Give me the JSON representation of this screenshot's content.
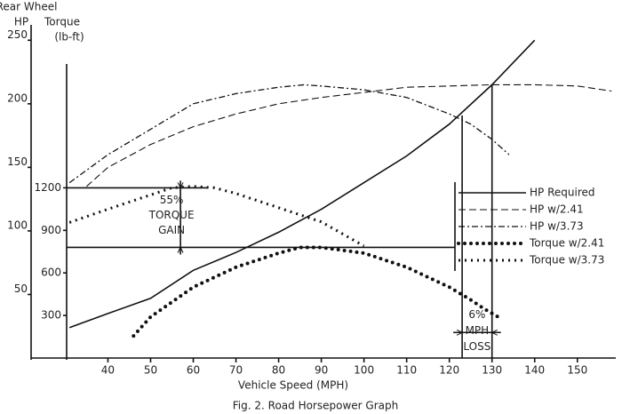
{
  "chart_data": {
    "type": "line",
    "caption": "Fig. 2. Road Horsepower Graph",
    "xlabel": "Vehicle Speed (MPH)",
    "ylabel": [
      "Rear Wheel",
      "HP"
    ],
    "y2label": [
      "Torque",
      "(lb-ft)"
    ],
    "xlim": [
      22,
      159
    ],
    "xticks": [
      40,
      50,
      60,
      70,
      80,
      90,
      100,
      110,
      120,
      130,
      140,
      150
    ],
    "ylim": [
      0,
      260
    ],
    "yticks": [
      50,
      100,
      150,
      200,
      250
    ],
    "y2lim": [
      0,
      2330
    ],
    "y2ticks": [
      300,
      600,
      900,
      1200
    ],
    "legend": "right",
    "series": [
      {
        "name": "HP Required",
        "style": "solid",
        "color": "#111",
        "x": [
          31,
          40,
          50,
          60,
          70,
          80,
          90,
          100,
          110,
          120,
          130,
          140
        ],
        "values": [
          24,
          35,
          47,
          69,
          83,
          99,
          117,
          138,
          159,
          184,
          215,
          250
        ]
      },
      {
        "name": "HP w/2.41",
        "style": "dashed",
        "color": "#111",
        "x": [
          35,
          40,
          50,
          60,
          70,
          80,
          90,
          100,
          110,
          120,
          130,
          140,
          150,
          158
        ],
        "values": [
          135,
          150,
          168,
          182,
          192,
          200,
          205,
          209,
          213,
          214,
          215,
          215,
          214,
          210
        ]
      },
      {
        "name": "HP w/3.73",
        "style": "dashdot",
        "color": "#111",
        "x": [
          31,
          40,
          50,
          60,
          70,
          80,
          86,
          90,
          100,
          110,
          120,
          125,
          130,
          134
        ],
        "values": [
          138,
          160,
          180,
          200,
          208,
          213,
          215,
          214,
          211,
          205,
          192,
          184,
          172,
          160
        ]
      },
      {
        "name": "Torque w/2.41",
        "style": "dotted",
        "color": "#111",
        "axis": "y2",
        "x": [
          46,
          50,
          60,
          70,
          80,
          85,
          90,
          100,
          110,
          120,
          125,
          128,
          132
        ],
        "values": [
          156,
          290,
          500,
          640,
          740,
          780,
          780,
          740,
          640,
          500,
          410,
          350,
          280
        ]
      },
      {
        "name": "Torque w/3.73",
        "style": "cross",
        "color": "#111",
        "axis": "y2",
        "x": [
          31,
          40,
          50,
          55,
          60,
          65,
          70,
          80,
          90,
          100
        ],
        "values": [
          956,
          1050,
          1150,
          1200,
          1210,
          1200,
          1160,
          1060,
          960,
          790
        ]
      }
    ],
    "annotations": [
      {
        "lines": [
          "55%",
          "TORQUE",
          "GAIN"
        ],
        "x": 57,
        "y2_range": [
          780,
          1200
        ]
      },
      {
        "lines": [
          "6%",
          "MPH",
          "LOSS"
        ],
        "x_range": [
          123,
          130
        ],
        "y2": 180
      }
    ]
  }
}
